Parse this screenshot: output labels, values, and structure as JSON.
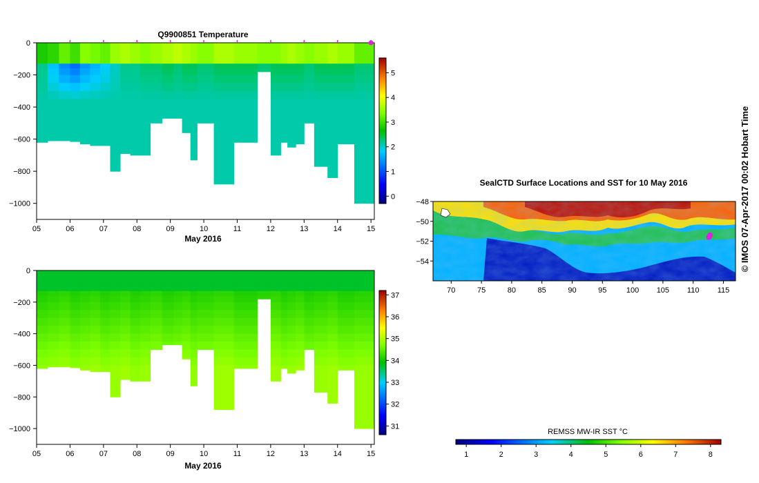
{
  "chart_data": [
    {
      "type": "heatmap",
      "variable": "temperature",
      "title": "Q9900851  Temperature",
      "xlabel": "May 2016",
      "ylabel": "",
      "xticks": [
        "05",
        "06",
        "07",
        "08",
        "09",
        "10",
        "11",
        "12",
        "13",
        "14",
        "15"
      ],
      "xlim": [
        5,
        15.1
      ],
      "ylim": [
        -1100,
        0
      ],
      "yticks": [
        0,
        -200,
        -400,
        -600,
        -800,
        -1000
      ],
      "colorbar": {
        "min": -0.3,
        "max": 5.6,
        "ticks": [
          0,
          1,
          2,
          3,
          4,
          5
        ]
      },
      "profile_markers_days": [
        6,
        7,
        8,
        9,
        10,
        11,
        12,
        13,
        14,
        15
      ],
      "profiles": [
        {
          "t": 5.0,
          "d": 620,
          "s": 2.8,
          "b": 2.1,
          "m": 2.2
        },
        {
          "t": 5.33,
          "d": 610,
          "s": 2.9,
          "b": 2.1,
          "m": 1.7
        },
        {
          "t": 5.67,
          "d": 610,
          "s": 3.2,
          "b": 2.1,
          "m": 1.3
        },
        {
          "t": 6.0,
          "d": 615,
          "s": 3.0,
          "b": 2.1,
          "m": 1.1
        },
        {
          "t": 6.3,
          "d": 630,
          "s": 3.4,
          "b": 2.1,
          "m": 1.4
        },
        {
          "t": 6.6,
          "d": 640,
          "s": 3.3,
          "b": 2.1,
          "m": 1.6
        },
        {
          "t": 6.9,
          "d": 640,
          "s": 3.2,
          "b": 2.1,
          "m": 1.8
        },
        {
          "t": 7.2,
          "d": 800,
          "s": 3.5,
          "b": 2.1,
          "m": 2.0
        },
        {
          "t": 7.5,
          "d": 690,
          "s": 3.6,
          "b": 2.1,
          "m": 2.2
        },
        {
          "t": 7.8,
          "d": 700,
          "s": 3.5,
          "b": 2.1,
          "m": 2.2
        },
        {
          "t": 8.1,
          "d": 700,
          "s": 3.4,
          "b": 2.1,
          "m": 2.3
        },
        {
          "t": 8.4,
          "d": 500,
          "s": 3.5,
          "b": 2.1,
          "m": 2.3
        },
        {
          "t": 8.75,
          "d": 470,
          "s": 3.6,
          "b": 2.1,
          "m": 2.4
        },
        {
          "t": 9.1,
          "d": 470,
          "s": 3.7,
          "b": 2.1,
          "m": 2.3
        },
        {
          "t": 9.35,
          "d": 560,
          "s": 3.6,
          "b": 2.1,
          "m": 2.4
        },
        {
          "t": 9.6,
          "d": 730,
          "s": 3.5,
          "b": 2.1,
          "m": 2.4
        },
        {
          "t": 9.8,
          "d": 500,
          "s": 3.4,
          "b": 2.1,
          "m": 2.3
        },
        {
          "t": 10.3,
          "d": 880,
          "s": 3.6,
          "b": 2.1,
          "m": 2.4
        },
        {
          "t": 10.9,
          "d": 620,
          "s": 3.5,
          "b": 2.1,
          "m": 2.4
        },
        {
          "t": 11.6,
          "d": 180,
          "s": 3.4,
          "b": 2.1,
          "m": 2.3
        },
        {
          "t": 12.0,
          "d": 700,
          "s": 3.4,
          "b": 2.1,
          "m": 2.4
        },
        {
          "t": 12.3,
          "d": 620,
          "s": 3.5,
          "b": 2.1,
          "m": 2.4
        },
        {
          "t": 12.5,
          "d": 650,
          "s": 3.6,
          "b": 2.1,
          "m": 2.4
        },
        {
          "t": 12.75,
          "d": 630,
          "s": 3.5,
          "b": 2.1,
          "m": 2.4
        },
        {
          "t": 13.0,
          "d": 500,
          "s": 3.4,
          "b": 2.1,
          "m": 2.3
        },
        {
          "t": 13.3,
          "d": 770,
          "s": 3.5,
          "b": 2.1,
          "m": 2.4
        },
        {
          "t": 13.7,
          "d": 840,
          "s": 3.6,
          "b": 2.1,
          "m": 2.4
        },
        {
          "t": 14.0,
          "d": 630,
          "s": 3.5,
          "b": 2.1,
          "m": 2.4
        },
        {
          "t": 14.5,
          "d": 1000,
          "s": 3.2,
          "b": 2.1,
          "m": 2.3
        }
      ]
    },
    {
      "type": "heatmap",
      "variable": "salinity",
      "title": "",
      "xlabel": "May 2016",
      "ylabel": "",
      "xticks": [
        "05",
        "06",
        "07",
        "08",
        "09",
        "10",
        "11",
        "12",
        "13",
        "14",
        "15"
      ],
      "xlim": [
        5,
        15.1
      ],
      "ylim": [
        -1100,
        0
      ],
      "yticks": [
        0,
        -200,
        -400,
        -600,
        -800,
        -1000
      ],
      "colorbar": {
        "min": 30.6,
        "max": 37.2,
        "ticks": [
          31,
          32,
          33,
          34,
          35,
          36,
          37
        ]
      }
    },
    {
      "type": "heatmap",
      "variable": "sea surface temperature map",
      "title": "SealCTD Surface Locations and SST for 10 May 2016",
      "xlabel": "",
      "ylabel": "",
      "xlim": [
        67,
        117
      ],
      "ylim": [
        -56,
        -48
      ],
      "xticks": [
        70,
        75,
        80,
        85,
        90,
        95,
        100,
        105,
        110,
        115
      ],
      "yticks": [
        -48,
        -50,
        -52,
        -54
      ],
      "colorbar": {
        "label": "REMSS MW-IR SST °C",
        "min": 0.7,
        "max": 8.3,
        "ticks": [
          1,
          2,
          3,
          4,
          5,
          6,
          7,
          8
        ]
      },
      "track_points": [
        [
          112.8,
          -51.4
        ],
        [
          112.6,
          -51.6
        ]
      ]
    }
  ],
  "credit": "© IMOS 07-Apr-2017 00:02 Hobart Time",
  "colors": {
    "marker": "#e020e0",
    "axis": "#000000"
  }
}
